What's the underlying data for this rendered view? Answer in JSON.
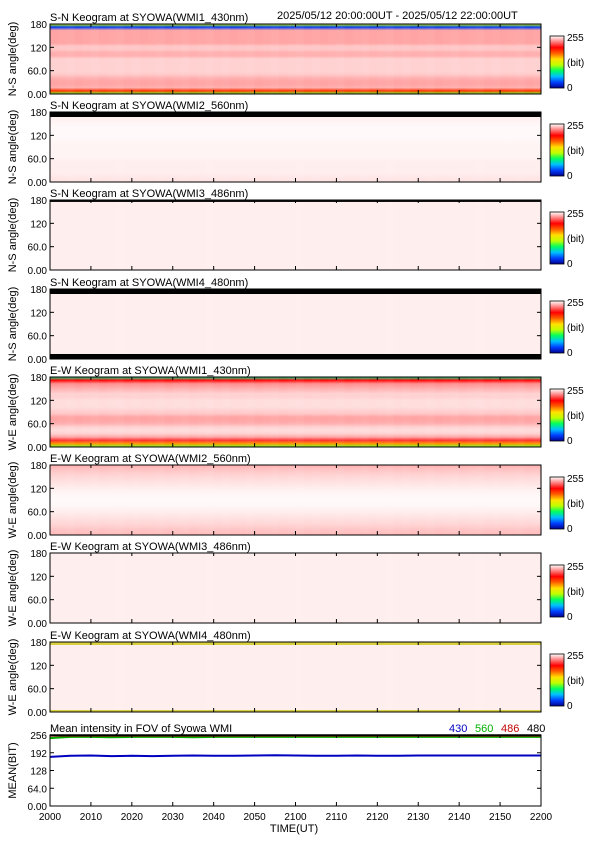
{
  "header": {
    "date_range": "2025/05/12 20:00:00UT - 2025/05/12 22:00:00UT"
  },
  "colorbar": {
    "max_label": "255",
    "min_label": "0",
    "unit_label": "(bit)",
    "stops": [
      "#000090",
      "#0040ff",
      "#00c0ff",
      "#00ff60",
      "#c0ff00",
      "#ffe000",
      "#ff6000",
      "#ff0000",
      "#ff8080",
      "#ffffff"
    ]
  },
  "x_axis": {
    "label": "TIME(UT)",
    "ticks": [
      "2000",
      "2010",
      "2020",
      "2030",
      "2040",
      "2050",
      "2100",
      "2110",
      "2120",
      "2130",
      "2140",
      "2150",
      "2200"
    ]
  },
  "chart_data": [
    {
      "type": "heatmap",
      "title": "S-N Keogram at SYOWA(WMI1_430nm)",
      "ylabel": "N-S angle(deg)",
      "y_ticks": [
        "180",
        "120",
        "60.0",
        "0.00"
      ],
      "ylim": [
        0,
        180
      ],
      "xlim": [
        "2000",
        "2200"
      ],
      "profile": [
        0.45,
        0.1,
        0.92,
        0.92,
        0.92,
        0.92,
        0.92,
        0.95,
        0.95,
        0.93,
        0.93,
        0.96,
        0.96,
        0.96,
        0.96,
        0.96,
        0.95,
        0.93,
        0.92,
        0.92,
        0.93,
        0.72,
        0.4
      ],
      "edges": []
    },
    {
      "type": "heatmap",
      "title": "S-N Keogram at SYOWA(WMI2_560nm)",
      "ylabel": "N-S angle(deg)",
      "y_ticks": [
        "180",
        "120",
        "60.0",
        "0.00"
      ],
      "ylim": [
        0,
        180
      ],
      "xlim": [
        "2000",
        "2200"
      ],
      "profile": [
        0.97,
        0.985,
        0.99,
        0.995,
        0.995,
        0.995,
        0.992,
        0.99,
        0.99,
        0.99,
        0.985,
        0.985,
        0.985,
        0.98,
        0.975
      ],
      "edges": [
        "top"
      ]
    },
    {
      "type": "heatmap",
      "title": "S-N Keogram at SYOWA(WMI3_486nm)",
      "ylabel": "N-S angle(deg)",
      "y_ticks": [
        "180",
        "120",
        "60.0",
        "0.00"
      ],
      "ylim": [
        0,
        180
      ],
      "xlim": [
        "2000",
        "2200"
      ],
      "profile": [
        0.985,
        0.985
      ],
      "edges": [
        "top-thin"
      ]
    },
    {
      "type": "heatmap",
      "title": "S-N Keogram at SYOWA(WMI4_480nm)",
      "ylabel": "N-S angle(deg)",
      "y_ticks": [
        "180",
        "120",
        "60.0",
        "0.00"
      ],
      "ylim": [
        0,
        180
      ],
      "xlim": [
        "2000",
        "2200"
      ],
      "profile": [
        0.985,
        0.985
      ],
      "edges": [
        "top",
        "bottom"
      ]
    },
    {
      "type": "heatmap",
      "title": "E-W Keogram at SYOWA(WMI1_430nm)",
      "ylabel": "W-E angle(deg)",
      "y_ticks": [
        "180",
        "120",
        "60.0",
        "0.00"
      ],
      "ylim": [
        0,
        180
      ],
      "xlim": [
        "2000",
        "2200"
      ],
      "profile": [
        0.3,
        0.78,
        0.9,
        0.92,
        0.94,
        0.96,
        0.96,
        0.97,
        0.97,
        0.97,
        0.96,
        0.95,
        0.92,
        0.92,
        0.93,
        0.96,
        0.97,
        0.96,
        0.92,
        0.82,
        0.62,
        0.4
      ],
      "edges": []
    },
    {
      "type": "heatmap",
      "title": "E-W Keogram at SYOWA(WMI2_560nm)",
      "ylabel": "W-E angle(deg)",
      "y_ticks": [
        "180",
        "120",
        "60.0",
        "0.00"
      ],
      "ylim": [
        0,
        180
      ],
      "xlim": [
        "2000",
        "2200"
      ],
      "profile": [
        0.93,
        0.95,
        0.965,
        0.975,
        0.985,
        0.993,
        0.996,
        0.993,
        0.985,
        0.975,
        0.965,
        0.95,
        0.94
      ],
      "edges": []
    },
    {
      "type": "heatmap",
      "title": "E-W Keogram at SYOWA(WMI3_486nm)",
      "ylabel": "W-E angle(deg)",
      "y_ticks": [
        "180",
        "120",
        "60.0",
        "0.00"
      ],
      "ylim": [
        0,
        180
      ],
      "xlim": [
        "2000",
        "2200"
      ],
      "profile": [
        0.985,
        0.985
      ],
      "edges": []
    },
    {
      "type": "heatmap",
      "title": "E-W Keogram at SYOWA(WMI4_480nm)",
      "ylabel": "W-E angle(deg)",
      "y_ticks": [
        "180",
        "120",
        "60.0",
        "0.00"
      ],
      "ylim": [
        0,
        180
      ],
      "xlim": [
        "2000",
        "2200"
      ],
      "profile": [
        0.985,
        0.985
      ],
      "edges": [
        "top-yellow",
        "bottom-yellow"
      ]
    },
    {
      "type": "line",
      "title": "Mean intensity in FOV of Syowa WMI",
      "ylabel": "MEAN(BIT)",
      "y_ticks": [
        "256",
        "192",
        "128",
        "64.0",
        "0.00"
      ],
      "ylim": [
        0,
        256
      ],
      "xlim": [
        "2000",
        "2200"
      ],
      "series": [
        {
          "name": "430",
          "color": "#0000c0",
          "values": [
            177,
            181,
            182,
            180,
            181,
            180,
            181,
            182,
            181,
            181,
            182,
            183,
            182,
            181,
            181,
            182,
            181,
            181,
            182,
            182,
            182,
            182,
            182,
            182,
            182
          ]
        },
        {
          "name": "560",
          "color": "#00b000",
          "values": [
            245,
            249,
            249,
            248,
            249,
            249,
            249,
            248,
            249,
            249,
            249,
            249,
            249,
            249,
            249,
            249,
            249,
            249,
            249,
            249,
            249,
            249,
            249,
            249,
            249
          ]
        },
        {
          "name": "486",
          "color": "#c00000",
          "values": [
            254,
            254,
            254,
            254,
            254,
            254,
            254,
            254,
            254,
            254,
            254,
            254,
            254,
            254,
            254,
            254,
            254,
            254,
            254,
            254,
            254,
            254,
            254,
            254,
            254
          ]
        },
        {
          "name": "480",
          "color": "#000000",
          "values": [
            255,
            255,
            255,
            255,
            255,
            255,
            255,
            255,
            255,
            255,
            255,
            255,
            255,
            255,
            255,
            255,
            255,
            255,
            255,
            255,
            255,
            255,
            255,
            255,
            255
          ]
        }
      ]
    }
  ]
}
